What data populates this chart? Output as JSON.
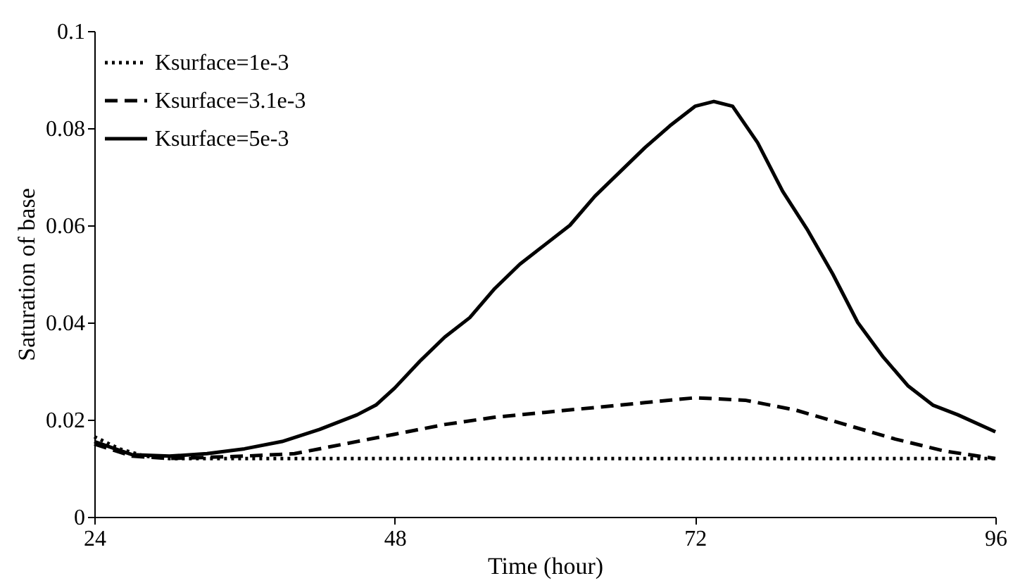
{
  "chart_data": {
    "type": "line",
    "xlabel": "Time (hour)",
    "ylabel": "Saturation of base",
    "xlim": [
      24,
      96
    ],
    "xticks": [
      24,
      48,
      72,
      96
    ],
    "ylim": [
      0,
      0.1
    ],
    "yticks": [
      0,
      0.02,
      0.04,
      0.06,
      0.08,
      0.1
    ],
    "grid": false,
    "legend": "top left",
    "marker": "none",
    "series": [
      {
        "name": "Ksurface=1e-3",
        "color": "#000000",
        "line_style": "dotted",
        "x": [
          24,
          26,
          28,
          30,
          40,
          60,
          80,
          96
        ],
        "values": [
          0.0165,
          0.014,
          0.0125,
          0.012,
          0.012,
          0.012,
          0.012,
          0.012
        ]
      },
      {
        "name": "Ksurface=3.1e-3",
        "color": "#000000",
        "line_style": "dashed",
        "x": [
          24,
          27,
          30,
          36,
          40,
          44,
          48,
          52,
          56,
          60,
          64,
          68,
          72,
          76,
          80,
          84,
          88,
          92,
          96
        ],
        "values": [
          0.015,
          0.0125,
          0.012,
          0.0125,
          0.013,
          0.015,
          0.017,
          0.019,
          0.0205,
          0.0215,
          0.0225,
          0.0235,
          0.0245,
          0.024,
          0.022,
          0.019,
          0.016,
          0.0135,
          0.012
        ]
      },
      {
        "name": "Ksurface=5e-3",
        "color": "#000000",
        "line_style": "solid",
        "x": [
          24,
          27,
          30,
          33,
          36,
          39,
          42,
          45,
          46.5,
          48,
          50,
          52,
          54,
          56,
          58,
          60,
          62,
          64,
          66,
          68,
          70,
          72,
          73.5,
          75,
          77,
          79,
          81,
          83,
          85,
          87,
          89,
          91,
          93,
          96
        ],
        "values": [
          0.0155,
          0.0128,
          0.0125,
          0.013,
          0.014,
          0.0155,
          0.018,
          0.021,
          0.023,
          0.0265,
          0.032,
          0.037,
          0.041,
          0.047,
          0.052,
          0.056,
          0.06,
          0.066,
          0.071,
          0.076,
          0.0805,
          0.0845,
          0.0855,
          0.0845,
          0.077,
          0.067,
          0.059,
          0.05,
          0.04,
          0.033,
          0.027,
          0.023,
          0.021,
          0.0175
        ]
      }
    ]
  }
}
